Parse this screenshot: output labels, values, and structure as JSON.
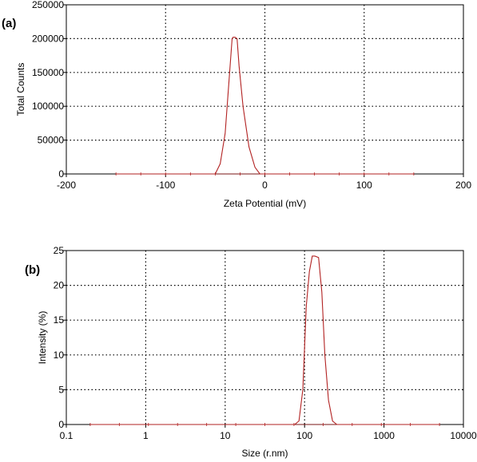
{
  "chart_data": [
    {
      "panel_label": "(a)",
      "type": "line",
      "xlabel": "Zeta Potential (mV)",
      "ylabel": "Total Counts",
      "xlim": [
        -200,
        200
      ],
      "ylim": [
        0,
        250000
      ],
      "x_scale": "linear",
      "x_ticks": [
        -200,
        -100,
        0,
        100,
        200
      ],
      "y_ticks": [
        0,
        50000,
        100000,
        150000,
        200000,
        250000
      ],
      "x_tick_labels": [
        "-200",
        "-100",
        "0",
        "100",
        "200"
      ],
      "y_tick_labels": [
        "0",
        "50000",
        "100000",
        "150000",
        "200000",
        "250000"
      ],
      "grid": true,
      "series": [
        {
          "color": "#b22222",
          "baseline_range": [
            -150,
            150
          ],
          "x": [
            -150,
            -50,
            -45,
            -40,
            -36,
            -33,
            -32,
            -30,
            -28,
            -26,
            -22,
            -16,
            -10,
            -5,
            150
          ],
          "y": [
            0,
            0,
            15000,
            60000,
            140000,
            200000,
            202000,
            202000,
            200000,
            160000,
            100000,
            40000,
            10000,
            0,
            0
          ]
        }
      ]
    },
    {
      "panel_label": "(b)",
      "type": "line",
      "xlabel": "Size (r.nm)",
      "ylabel": "Intensity (%)",
      "xlim": [
        0.1,
        10000
      ],
      "ylim": [
        0,
        25
      ],
      "x_scale": "log",
      "x_ticks": [
        0.1,
        1,
        10,
        100,
        1000,
        10000
      ],
      "y_ticks": [
        0,
        5,
        10,
        15,
        20,
        25
      ],
      "x_tick_labels": [
        "0.1",
        "1",
        "10",
        "100",
        "1000",
        "10000"
      ],
      "y_tick_labels": [
        "0",
        "5",
        "10",
        "15",
        "20",
        "25"
      ],
      "grid": true,
      "series": [
        {
          "color": "#b22222",
          "baseline_range": [
            0.2,
            5000
          ],
          "x": [
            0.2,
            75,
            85,
            95,
            105,
            115,
            125,
            135,
            150,
            165,
            180,
            200,
            225,
            255,
            5000
          ],
          "y": [
            0,
            0,
            0.5,
            5,
            17,
            22,
            24.2,
            24.2,
            24,
            19,
            10,
            3.5,
            0.5,
            0,
            0
          ]
        }
      ]
    }
  ]
}
